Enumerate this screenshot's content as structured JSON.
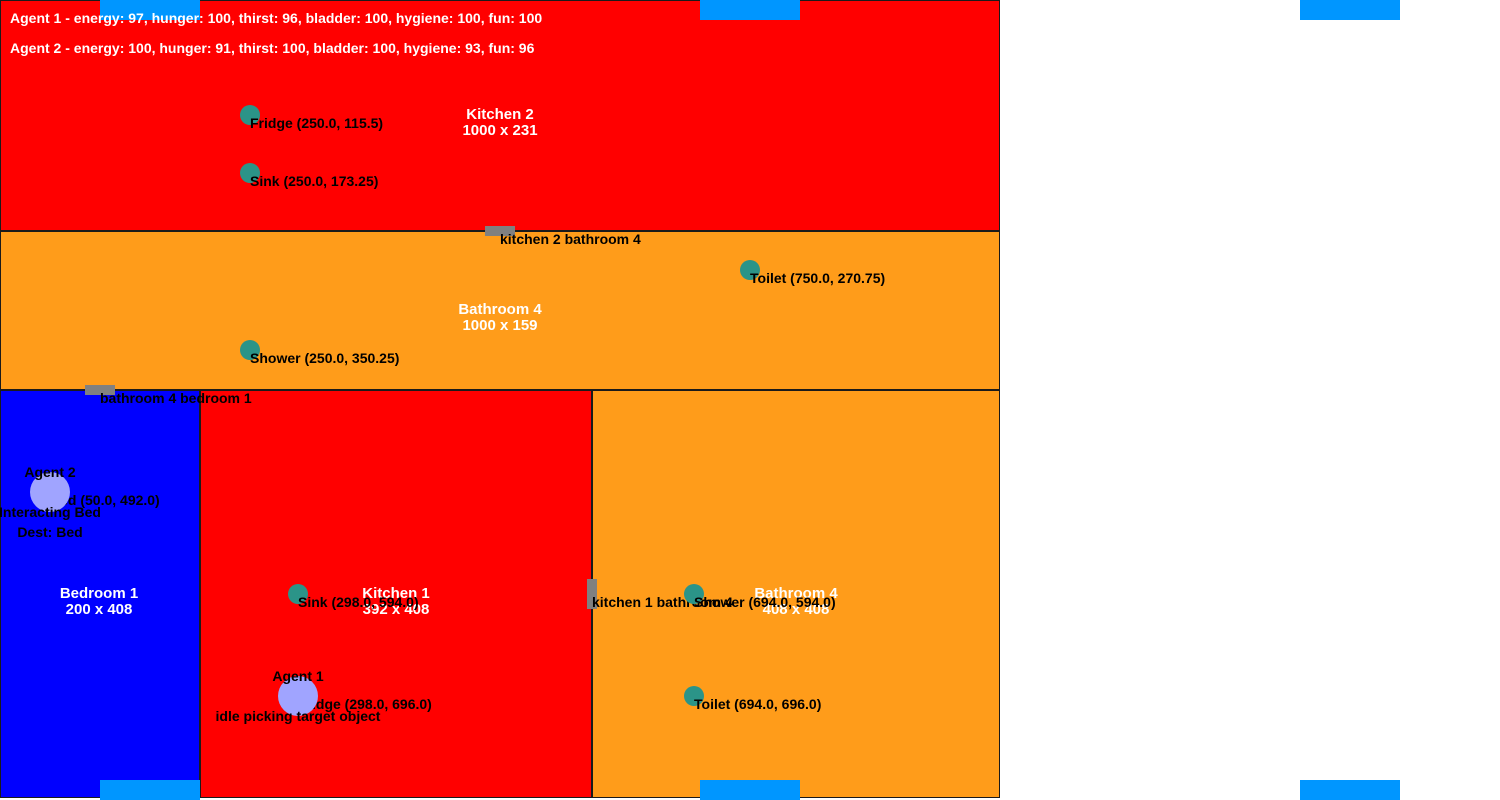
{
  "colors": {
    "kitchen": "#ff0000",
    "bathroom": "#ff9c1a",
    "bedroom": "#0000ff",
    "object": "#2b9488",
    "door": "#808080",
    "window": "#0096ff",
    "agent": "#a0a4ff"
  },
  "status": [
    "Agent 1 - energy: 97, hunger: 100, thirst: 96, bladder: 100, hygiene: 100, fun: 100",
    "Agent 2 - energy: 100, hunger: 91, thirst: 100, bladder: 100, hygiene: 93, fun: 96"
  ],
  "rooms": [
    {
      "name": "Kitchen 2",
      "size": "1000 x 231",
      "type": "kitchen"
    },
    {
      "name": "Bathroom 4",
      "size": "1000 x 159",
      "type": "bathroom"
    },
    {
      "name": "Bedroom 1",
      "size": "200 x 408",
      "type": "bedroom"
    },
    {
      "name": "Kitchen 1",
      "size": "392 x 408",
      "type": "kitchen"
    },
    {
      "name": "Bathroom 4",
      "size": "408 x 408",
      "type": "bathroom"
    }
  ],
  "objects": [
    {
      "label": "Fridge (250.0, 115.5)"
    },
    {
      "label": "Sink (250.0, 173.25)"
    },
    {
      "label": "Toilet (750.0, 270.75)"
    },
    {
      "label": "Shower (250.0, 350.25)"
    },
    {
      "label": "Bed (50.0, 492.0)"
    },
    {
      "label": "Sink (298.0, 594.0)"
    },
    {
      "label": "Fridge (298.0, 696.0)"
    },
    {
      "label": "Shower (694.0, 594.0)"
    },
    {
      "label": "Toilet (694.0, 696.0)"
    }
  ],
  "doors": [
    {
      "label": "kitchen 2 bathroom 4"
    },
    {
      "label": "bathroom 4 bedroom 1"
    },
    {
      "label": "kitchen 1 bathroom 4"
    }
  ],
  "agents": [
    {
      "name": "Agent 2",
      "state": "Interacting Bed",
      "dest": "Dest: Bed"
    },
    {
      "name": "Agent 1",
      "state": "idle picking target object",
      "dest": ""
    }
  ]
}
